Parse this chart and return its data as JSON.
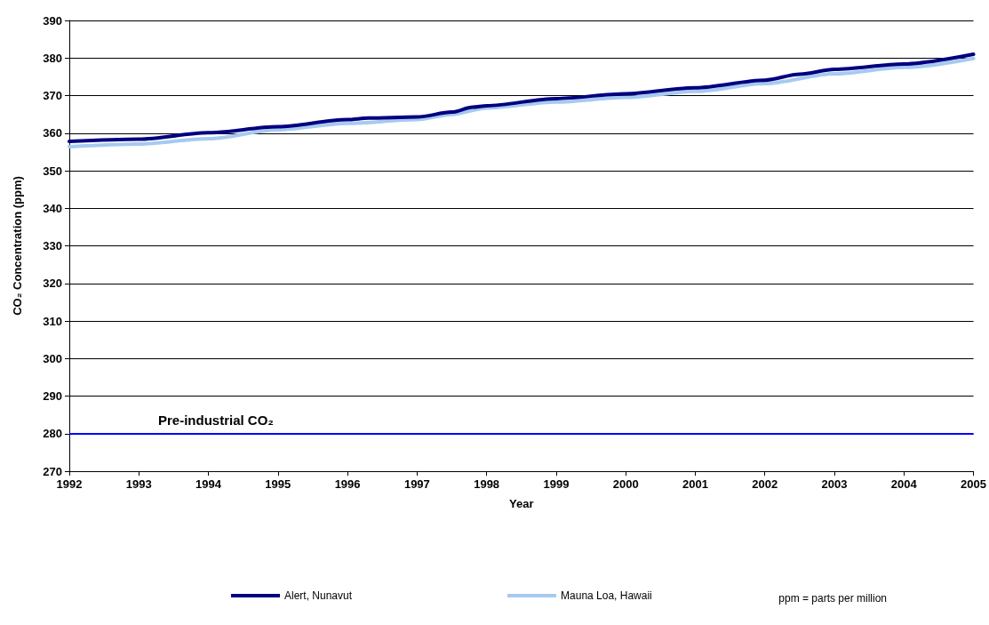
{
  "chart_data": {
    "type": "line",
    "xlabel": "Year",
    "ylabel": "CO₂ Concentration (ppm)",
    "xlim": [
      1992,
      2005
    ],
    "xticks": [
      1992,
      1993,
      1994,
      1995,
      1996,
      1997,
      1998,
      1999,
      2000,
      2001,
      2002,
      2003,
      2004,
      2005
    ],
    "ylim": [
      270,
      390
    ],
    "yticks": [
      270,
      280,
      290,
      300,
      310,
      320,
      330,
      340,
      350,
      360,
      370,
      380,
      390
    ],
    "grid": "y",
    "legend": "bottom",
    "marker": "none",
    "line_style": "solid",
    "series": [
      {
        "name": "Alert, Nunavut",
        "color": "#000080",
        "x": [
          1992,
          1993,
          1994,
          1995,
          1996,
          1996.3,
          1997,
          1997.5,
          1997.8,
          1998,
          1999,
          2000,
          2001,
          2002,
          2002.5,
          2003,
          2004,
          2005
        ],
        "values": [
          357.8,
          358.4,
          360.1,
          361.7,
          363.6,
          364,
          364.3,
          365.6,
          366.9,
          367.3,
          369.2,
          370.5,
          372.1,
          374.1,
          375.7,
          377,
          378.4,
          381
        ]
      },
      {
        "name": "Mauna Loa, Hawaii",
        "color": "#a6caf0",
        "x": [
          1992,
          1993,
          1994,
          1995,
          1996,
          1997,
          1997.5,
          1998,
          1999,
          2000,
          2001,
          2002,
          2003,
          2004,
          2005
        ],
        "values": [
          356.4,
          357.1,
          358.5,
          360.9,
          362.6,
          363.6,
          365,
          366.7,
          368.3,
          369.5,
          371.1,
          373.2,
          375.8,
          377.5,
          379.9
        ]
      }
    ],
    "ref_lines": [
      {
        "axis": "y",
        "value": 280,
        "label": "Pre-industrial CO₂",
        "color": "#0000ff"
      }
    ],
    "annotations": [
      "ppm = parts per million"
    ]
  }
}
